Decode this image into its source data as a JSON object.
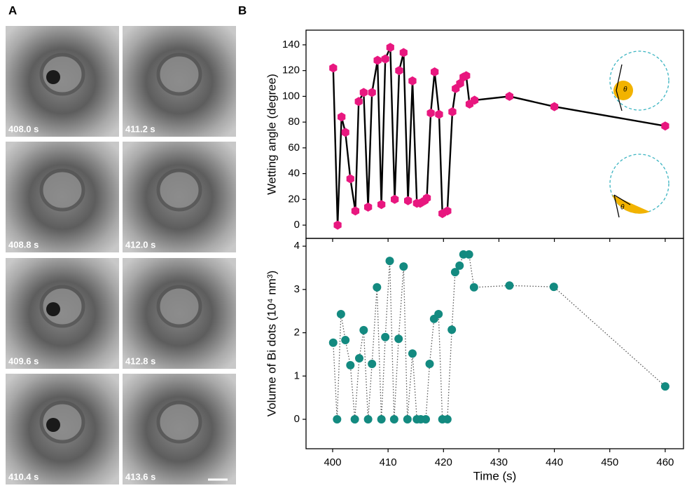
{
  "panel_labels": [
    "A",
    "B"
  ],
  "images": [
    {
      "label": "408.0 s"
    },
    {
      "label": "411.2 s"
    },
    {
      "label": "408.8 s"
    },
    {
      "label": "412.0 s"
    },
    {
      "label": "409.6 s"
    },
    {
      "label": "412.8 s"
    },
    {
      "label": "410.4 s"
    },
    {
      "label": "413.6 s"
    }
  ],
  "chart_data": [
    {
      "type": "line",
      "ylabel": "Wetting angle (degree)",
      "annotations": [
        "θ",
        "θ"
      ],
      "x": [
        400.1,
        400.9,
        401.6,
        402.3,
        403.2,
        404.1,
        404.7,
        405.6,
        406.4,
        407.1,
        408.1,
        408.8,
        409.5,
        410.4,
        411.2,
        412.0,
        412.8,
        413.6,
        414.4,
        415.2,
        415.8,
        416.6,
        417.0,
        417.7,
        418.4,
        419.2,
        419.8,
        420.7,
        421.6,
        422.2,
        423.0,
        423.6,
        424.1,
        424.7,
        425.6,
        431.9,
        440.0,
        460.0
      ],
      "series": [
        {
          "color": "#e8177f",
          "line_color": "#000000",
          "line_style": "solid",
          "marker": "hexagon",
          "values": [
            122,
            0,
            84,
            72,
            36,
            11,
            96,
            103,
            14,
            103,
            128,
            16,
            129,
            138,
            20,
            120,
            134,
            19,
            112,
            17,
            17,
            19,
            21,
            87,
            119,
            86,
            9,
            11,
            88,
            106,
            110,
            115,
            116,
            94,
            97,
            100,
            92,
            77
          ]
        }
      ],
      "xlim": [
        395.2,
        463.3
      ],
      "xticks": [
        400,
        410,
        420,
        430,
        440,
        450,
        460
      ],
      "show_xtick_labels": false,
      "ylim": [
        -10.3,
        151.4
      ],
      "yticks": [
        0,
        20,
        40,
        60,
        80,
        100,
        120,
        140
      ]
    },
    {
      "type": "line",
      "ylabel": "Volume of Bi dots (10⁴ nm³)",
      "xlabel": "Time (s)",
      "x": [
        400.1,
        400.8,
        401.5,
        402.3,
        403.2,
        404.0,
        404.8,
        405.6,
        406.4,
        407.1,
        408.0,
        408.8,
        409.5,
        410.3,
        411.1,
        411.9,
        412.8,
        413.5,
        414.4,
        415.2,
        415.9,
        416.8,
        417.5,
        418.3,
        419.1,
        419.8,
        420.7,
        421.5,
        422.1,
        422.9,
        423.6,
        424.6,
        425.5,
        431.9,
        439.9,
        460.0
      ],
      "series": [
        {
          "color": "#138a80",
          "line_color": "#555555",
          "line_style": "dotted",
          "marker": "circle",
          "values": [
            1.77,
            0,
            2.43,
            1.83,
            1.25,
            0,
            1.41,
            2.06,
            0,
            1.28,
            3.05,
            0,
            1.9,
            3.66,
            0,
            1.86,
            3.53,
            0,
            1.52,
            0,
            0,
            0,
            1.28,
            2.32,
            2.43,
            0,
            0,
            2.07,
            3.4,
            3.55,
            3.81,
            3.81,
            3.05,
            3.09,
            3.06,
            0.76
          ]
        }
      ],
      "xlim": [
        395.2,
        463.3
      ],
      "xticks": [
        400,
        410,
        420,
        430,
        440,
        450,
        460
      ],
      "show_xtick_labels": true,
      "ylim": [
        -0.68,
        4.18
      ],
      "yticks": [
        0,
        1,
        2,
        3,
        4
      ]
    }
  ]
}
